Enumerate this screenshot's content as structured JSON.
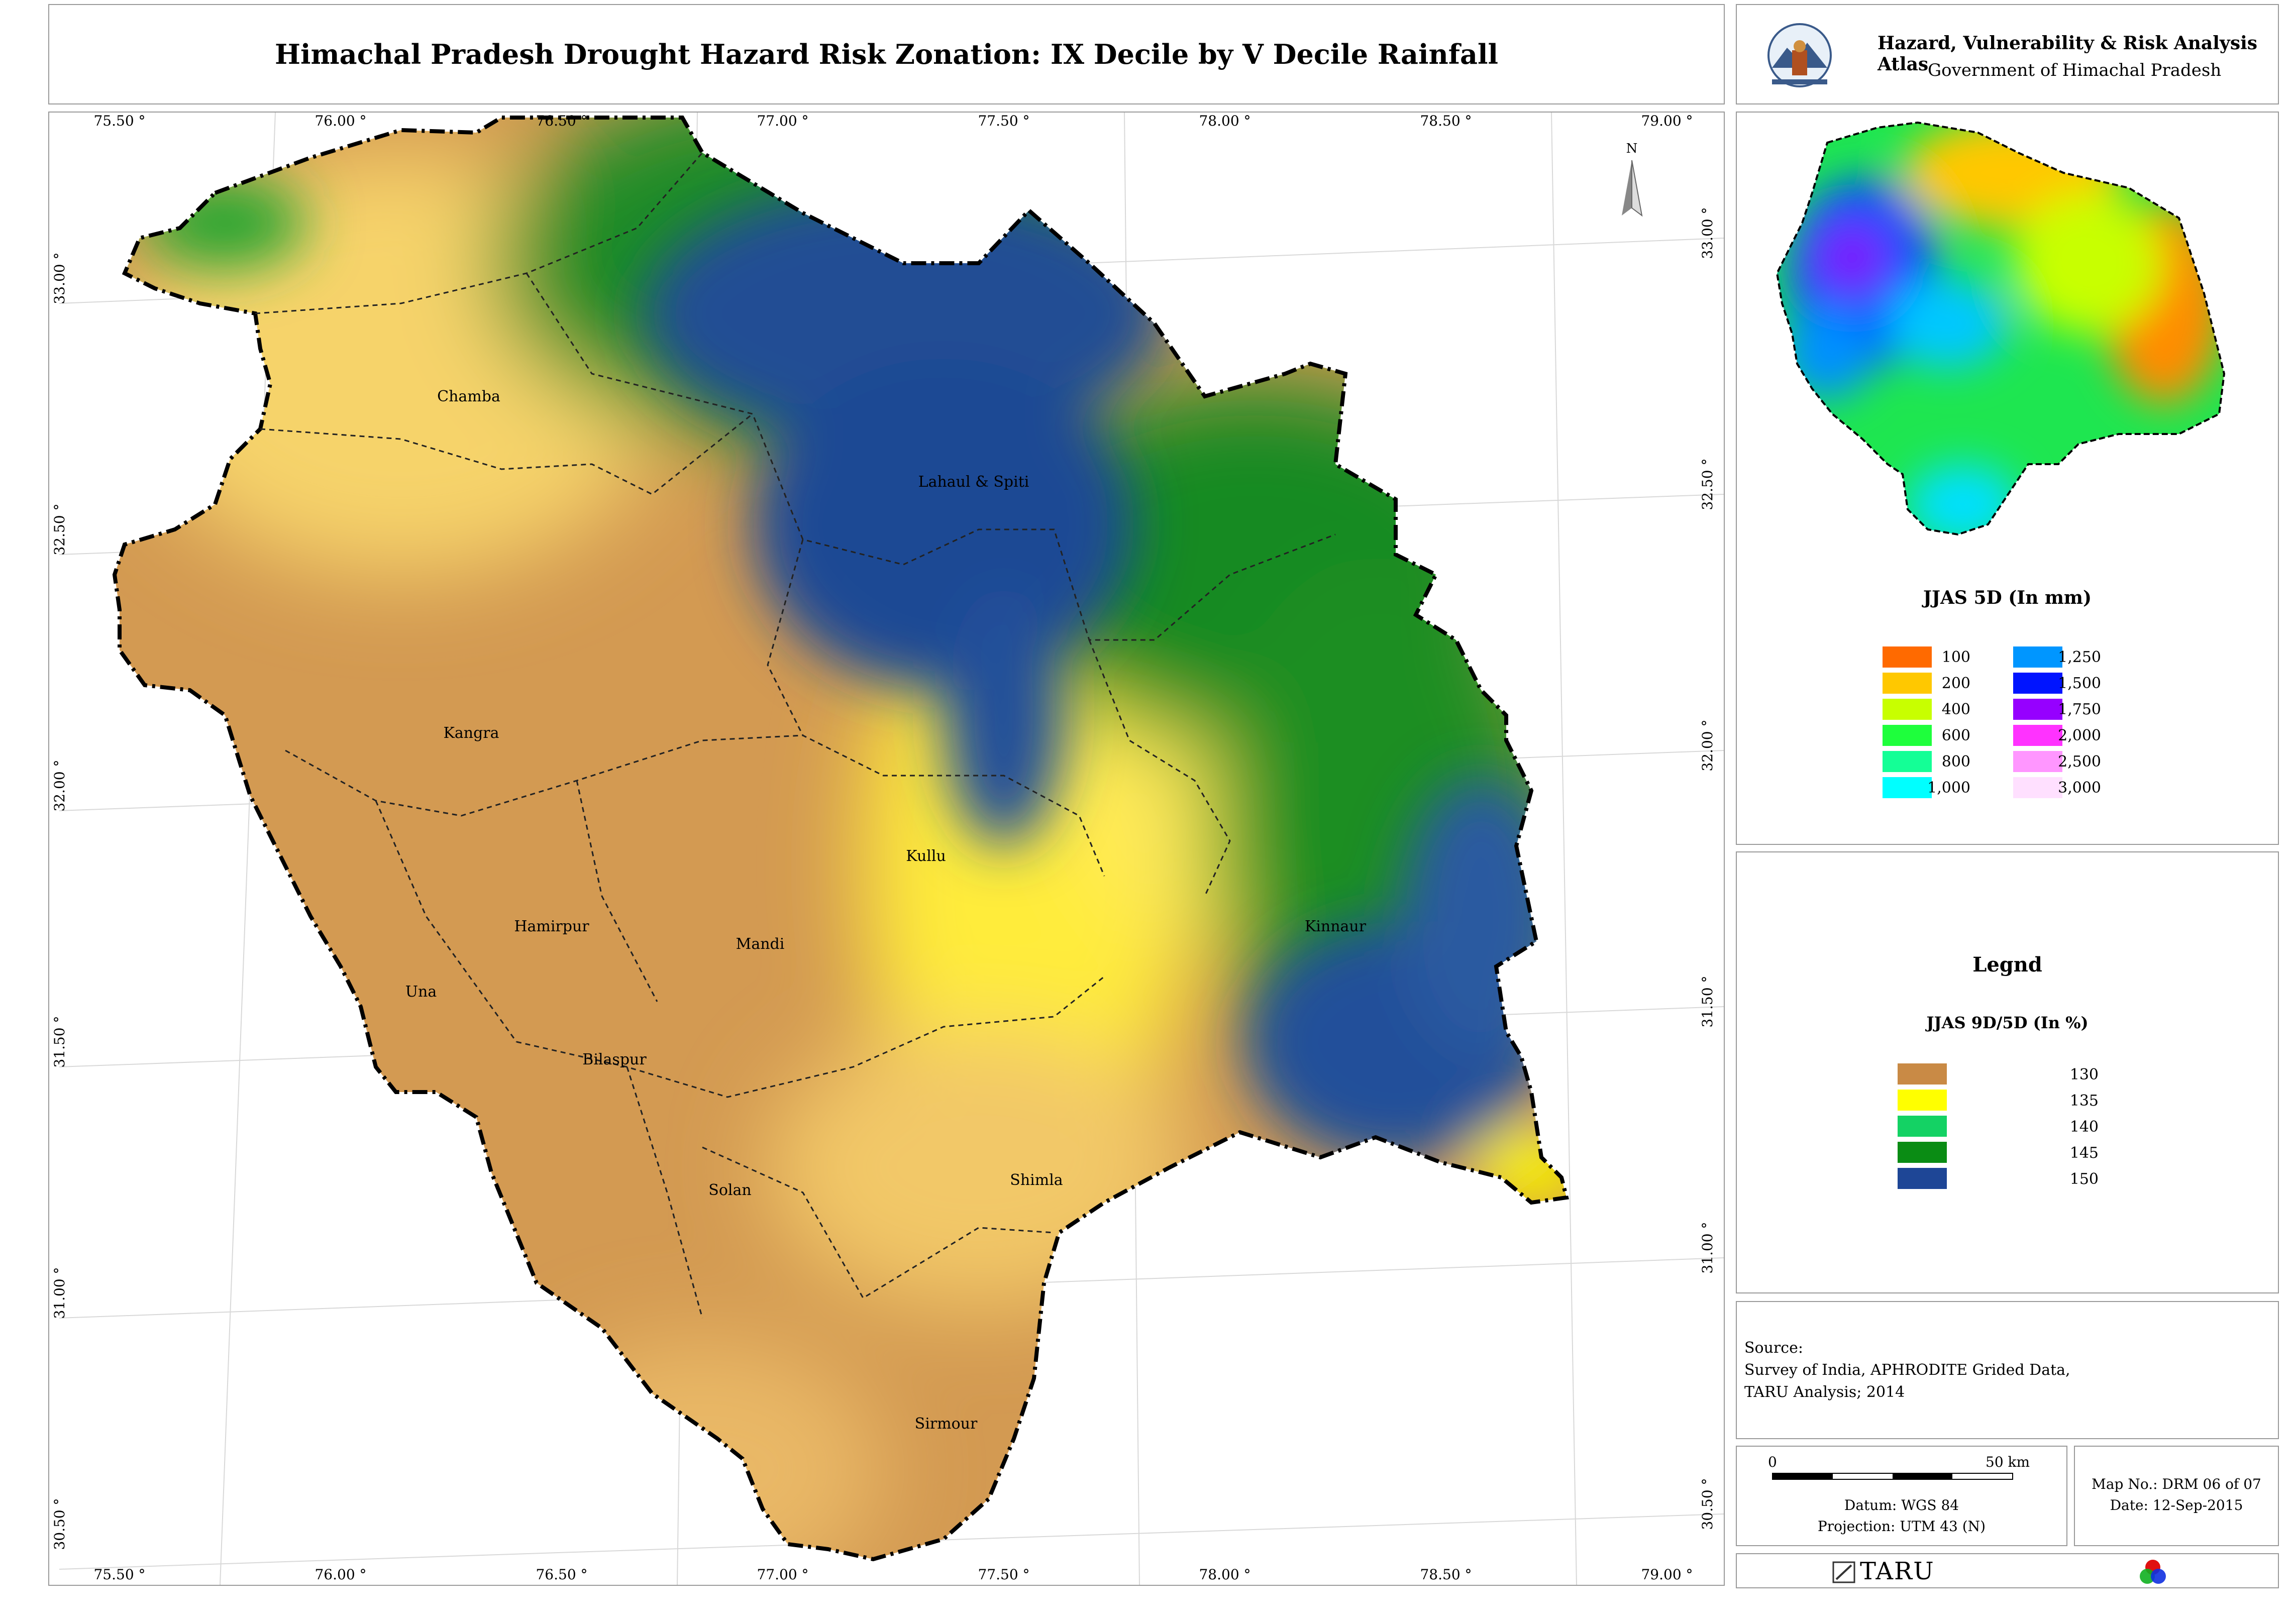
{
  "title": "Himachal Pradesh Drought Hazard Risk Zonation: IX Decile by V Decile Rainfall",
  "header": {
    "atlas_title": "Hazard, Vulnerability & Risk Analysis Atlas",
    "government": "Government of Himachal Pradesh"
  },
  "map": {
    "x_ticks": [
      "75.50 °",
      "76.00 °",
      "76.50 °",
      "77.00 °",
      "77.50 °",
      "78.00 °",
      "78.50 °",
      "79.00 °"
    ],
    "y_ticks": [
      "33.00 °",
      "32.50 °",
      "32.00 °",
      "31.50 °",
      "31.00 °",
      "30.50 °"
    ],
    "north_label": "N",
    "districts": [
      "Chamba",
      "Lahaul & Spiti",
      "Kangra",
      "Kullu",
      "Hamirpur",
      "Mandi",
      "Kinnaur",
      "Una",
      "Bilaspur",
      "Solan",
      "Shimla",
      "Sirmour"
    ]
  },
  "inset": {
    "title": "JJAS 5D (In mm)",
    "legend": [
      {
        "label": "100",
        "color": "#ff6a00"
      },
      {
        "label": "200",
        "color": "#ffc800"
      },
      {
        "label": "400",
        "color": "#c8ff00"
      },
      {
        "label": "600",
        "color": "#1eff3c"
      },
      {
        "label": "800",
        "color": "#14ff96"
      },
      {
        "label": "1,000",
        "color": "#00ffff"
      },
      {
        "label": "1,250",
        "color": "#0096ff"
      },
      {
        "label": "1,500",
        "color": "#0014ff"
      },
      {
        "label": "1,750",
        "color": "#9600ff"
      },
      {
        "label": "2,000",
        "color": "#ff32ff"
      },
      {
        "label": "2,500",
        "color": "#ff96ff"
      },
      {
        "label": "3,000",
        "color": "#ffe0ff"
      }
    ]
  },
  "legend": {
    "title": "Legnd",
    "subtitle": "JJAS 9D/5D (In %)",
    "items": [
      {
        "label": "130",
        "color": "#c98a45"
      },
      {
        "label": "135",
        "color": "#ffff00"
      },
      {
        "label": "140",
        "color": "#14d264"
      },
      {
        "label": "145",
        "color": "#0a8c14"
      },
      {
        "label": "150",
        "color": "#1e4696"
      }
    ]
  },
  "source": {
    "heading": "Source:",
    "lines": [
      "Survey of India, APHRODITE Grided Data,",
      "TARU Analysis; 2014"
    ]
  },
  "scalebar": {
    "start": "0",
    "end": "50 km",
    "datum": "Datum: WGS 84",
    "projection": "Projection: UTM 43 (N)"
  },
  "map_info": {
    "map_no": "Map No.: DRM 06 of 07",
    "date": "Date: 12-Sep-2015"
  },
  "footer": {
    "brand": "TARU"
  }
}
